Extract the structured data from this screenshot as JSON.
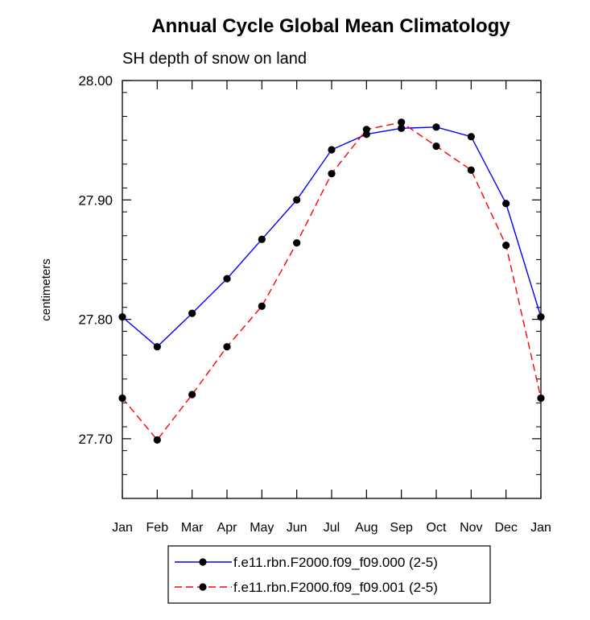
{
  "chart_data": {
    "type": "line",
    "title": "Annual Cycle Global Mean Climatology",
    "subtitle": "SH depth of snow on land",
    "xlabel": "",
    "ylabel": "centimeters",
    "categories": [
      "Jan",
      "Feb",
      "Mar",
      "Apr",
      "May",
      "Jun",
      "Jul",
      "Aug",
      "Sep",
      "Oct",
      "Nov",
      "Dec",
      "Jan"
    ],
    "ylim": [
      27.65,
      28.0
    ],
    "yticks": [
      27.7,
      27.8,
      27.9,
      28.0
    ],
    "ytick_labels": [
      "27.70",
      "27.80",
      "27.90",
      "28.00"
    ],
    "grid": false,
    "legend_position": "bottom-center",
    "series": [
      {
        "name": "f.e11.rbn.F2000.f09_f09.000 (2-5)",
        "color": "#0000ff",
        "dash": "solid",
        "marker": "circle",
        "values": [
          27.802,
          27.777,
          27.805,
          27.834,
          27.867,
          27.9,
          27.942,
          27.955,
          27.96,
          27.961,
          27.953,
          27.897,
          27.802
        ]
      },
      {
        "name": "f.e11.rbn.F2000.f09_f09.001 (2-5)",
        "color": "#ff0000",
        "dash": "dashed",
        "marker": "circle",
        "values": [
          27.734,
          27.699,
          27.737,
          27.777,
          27.811,
          27.864,
          27.922,
          27.959,
          27.965,
          27.945,
          27.925,
          27.862,
          27.734
        ]
      }
    ]
  }
}
